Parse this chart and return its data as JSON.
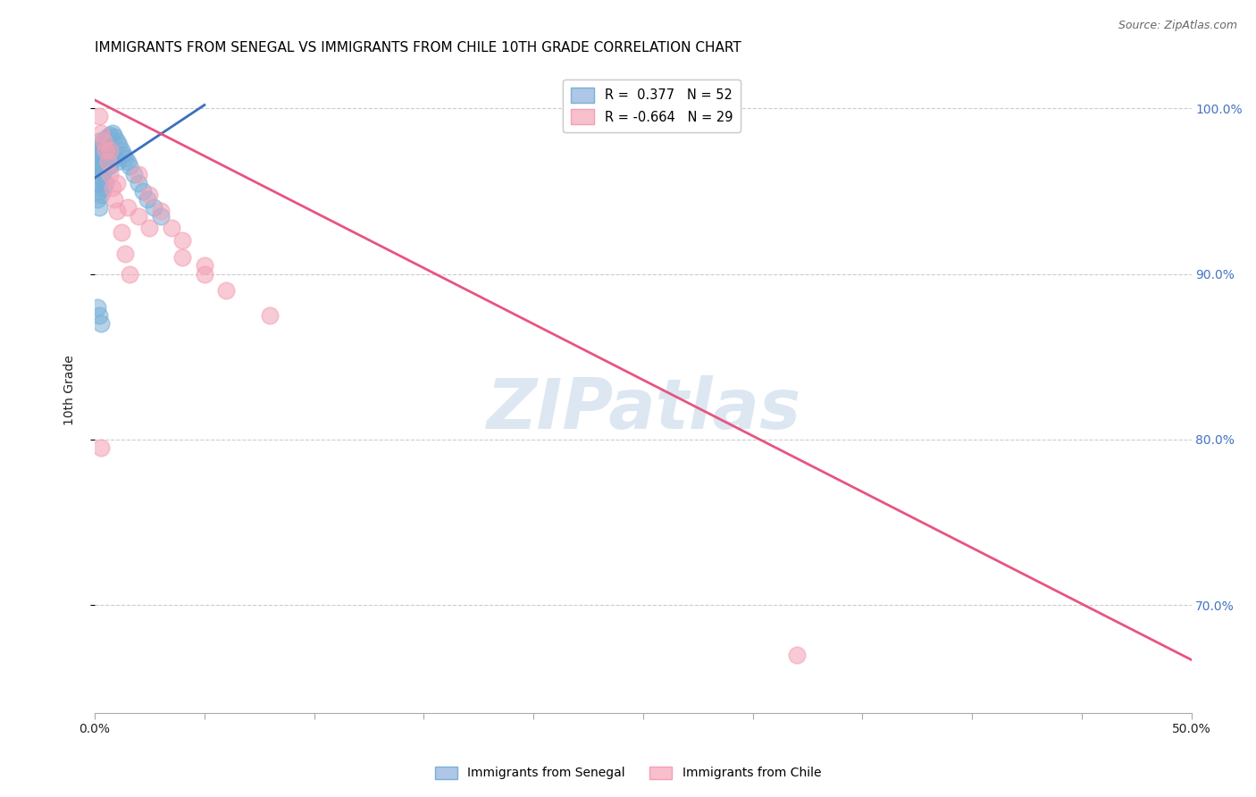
{
  "title": "IMMIGRANTS FROM SENEGAL VS IMMIGRANTS FROM CHILE 10TH GRADE CORRELATION CHART",
  "source": "Source: ZipAtlas.com",
  "ylabel": "10th Grade",
  "senegal_color": "#7ab0d8",
  "chile_color": "#f4a0b5",
  "senegal_line_color": "#3a6fbe",
  "chile_line_color": "#e85480",
  "legend_senegal_label": "R =  0.377   N = 52",
  "legend_chile_label": "R = -0.664   N = 29",
  "bottom_legend_senegal": "Immigrants from Senegal",
  "bottom_legend_chile": "Immigrants from Chile",
  "xlim": [
    0.0,
    0.5
  ],
  "ylim": [
    0.635,
    1.025
  ],
  "right_yticks": [
    0.7,
    0.8,
    0.9,
    1.0
  ],
  "grid_yticks": [
    0.7,
    0.8,
    0.9,
    1.0
  ],
  "watermark": "ZIPatlas",
  "title_fontsize": 11,
  "source_fontsize": 9,
  "right_tick_color": "#4472c4",
  "senegal_x": [
    0.001,
    0.001,
    0.001,
    0.001,
    0.001,
    0.001,
    0.002,
    0.002,
    0.002,
    0.002,
    0.002,
    0.002,
    0.003,
    0.003,
    0.003,
    0.003,
    0.003,
    0.004,
    0.004,
    0.004,
    0.004,
    0.005,
    0.005,
    0.005,
    0.005,
    0.006,
    0.006,
    0.006,
    0.007,
    0.007,
    0.007,
    0.008,
    0.008,
    0.009,
    0.009,
    0.01,
    0.01,
    0.011,
    0.012,
    0.013,
    0.014,
    0.015,
    0.016,
    0.018,
    0.02,
    0.022,
    0.024,
    0.027,
    0.03,
    0.001,
    0.002,
    0.003
  ],
  "senegal_y": [
    0.975,
    0.97,
    0.965,
    0.96,
    0.955,
    0.945,
    0.98,
    0.975,
    0.968,
    0.962,
    0.95,
    0.94,
    0.978,
    0.972,
    0.965,
    0.958,
    0.948,
    0.98,
    0.97,
    0.962,
    0.952,
    0.982,
    0.975,
    0.968,
    0.955,
    0.983,
    0.976,
    0.965,
    0.984,
    0.975,
    0.965,
    0.985,
    0.972,
    0.983,
    0.97,
    0.98,
    0.968,
    0.978,
    0.975,
    0.972,
    0.97,
    0.968,
    0.965,
    0.96,
    0.955,
    0.95,
    0.945,
    0.94,
    0.935,
    0.88,
    0.875,
    0.87
  ],
  "chile_x": [
    0.002,
    0.003,
    0.004,
    0.005,
    0.006,
    0.007,
    0.008,
    0.009,
    0.01,
    0.012,
    0.014,
    0.016,
    0.02,
    0.025,
    0.03,
    0.035,
    0.04,
    0.05,
    0.007,
    0.01,
    0.015,
    0.02,
    0.025,
    0.04,
    0.05,
    0.06,
    0.08,
    0.32,
    0.003
  ],
  "chile_y": [
    0.995,
    0.985,
    0.98,
    0.975,
    0.968,
    0.96,
    0.952,
    0.945,
    0.938,
    0.925,
    0.912,
    0.9,
    0.96,
    0.948,
    0.938,
    0.928,
    0.92,
    0.905,
    0.975,
    0.955,
    0.94,
    0.935,
    0.928,
    0.91,
    0.9,
    0.89,
    0.875,
    0.67,
    0.795
  ],
  "chile_line_x0": 0.0,
  "chile_line_y0": 1.005,
  "chile_line_x1": 0.5,
  "chile_line_y1": 0.667,
  "senegal_line_x0": 0.0,
  "senegal_line_y0": 0.958,
  "senegal_line_x1": 0.05,
  "senegal_line_y1": 1.002
}
